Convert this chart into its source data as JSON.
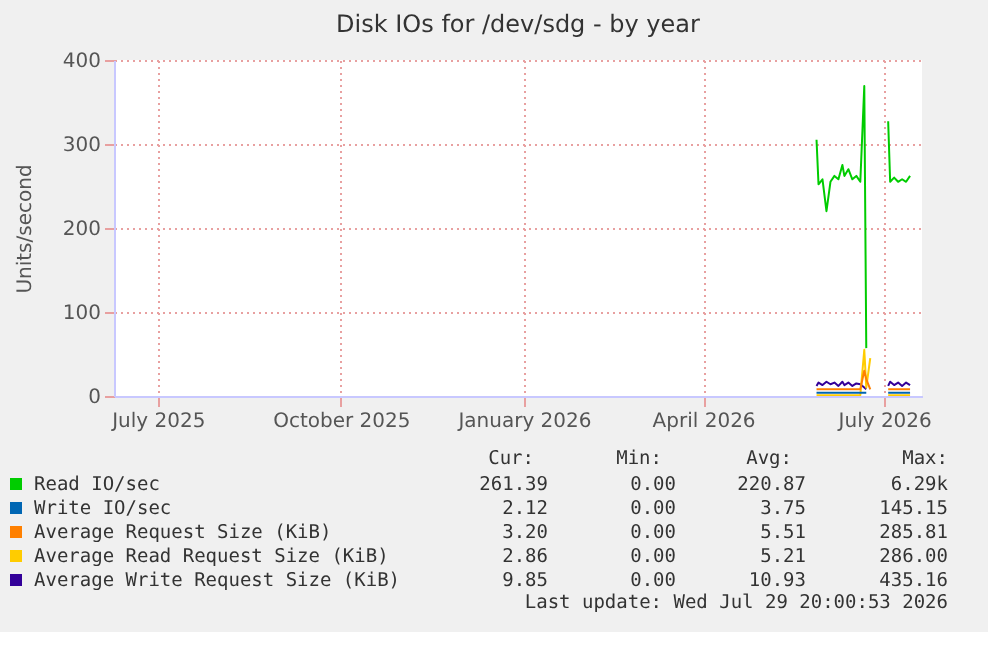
{
  "chart_data": {
    "type": "line",
    "title": "Disk IOs for /dev/sdg - by year",
    "ylabel": "Units/second",
    "x": [
      "2026-05-28",
      "2026-05-29",
      "2026-05-31",
      "2026-06-02",
      "2026-06-04",
      "2026-06-06",
      "2026-06-08",
      "2026-06-10",
      "2026-06-11",
      "2026-06-13",
      "2026-06-15",
      "2026-06-17",
      "2026-06-19",
      "2026-06-21",
      "2026-06-22",
      "2026-06-24",
      "2026-06-28",
      "2026-07-03",
      "2026-07-04",
      "2026-07-06",
      "2026-07-08",
      "2026-07-10",
      "2026-07-12",
      "2026-07-14"
    ],
    "series": [
      {
        "name": "Read IO/sec",
        "color": "#00cc00",
        "values": [
          305,
          252,
          258,
          220,
          255,
          262,
          258,
          275,
          262,
          270,
          258,
          262,
          255,
          369,
          57,
          null,
          null,
          327,
          255,
          260,
          255,
          258,
          255,
          262
        ]
      },
      {
        "name": "Write IO/sec",
        "color": "#0066b3",
        "values": [
          4,
          4,
          4,
          4,
          4,
          4,
          4,
          4,
          4,
          4,
          4,
          4,
          4,
          4,
          4,
          null,
          null,
          4,
          4,
          4,
          4,
          4,
          4,
          4
        ]
      },
      {
        "name": "Average Request Size (KiB)",
        "color": "#ff8000",
        "values": [
          8,
          8,
          8,
          8,
          8,
          8,
          8,
          8,
          8,
          8,
          8,
          8,
          8,
          30,
          20,
          8,
          null,
          8,
          8,
          8,
          8,
          8,
          8,
          8
        ]
      },
      {
        "name": "Average Read Request Size (KiB)",
        "color": "#ffcc00",
        "values": [
          1,
          1,
          1,
          1,
          1,
          1,
          1,
          1,
          1,
          1,
          1,
          1,
          1,
          55,
          10,
          45,
          null,
          1,
          1,
          1,
          1,
          1,
          1,
          1
        ]
      },
      {
        "name": "Average Write Request Size (KiB)",
        "color": "#330099",
        "values": [
          12,
          16,
          13,
          17,
          14,
          16,
          12,
          17,
          13,
          16,
          12,
          15,
          14,
          10,
          8,
          null,
          null,
          12,
          17,
          13,
          16,
          12,
          16,
          13
        ]
      }
    ],
    "xlim": [
      "2025-06-09",
      "2026-07-20"
    ],
    "xticks": [
      {
        "value": "2025-07-01",
        "label": "July 2025"
      },
      {
        "value": "2025-10-01",
        "label": "October 2025"
      },
      {
        "value": "2026-01-01",
        "label": "January 2026"
      },
      {
        "value": "2026-04-01",
        "label": "April 2026"
      },
      {
        "value": "2026-07-01",
        "label": "July 2026"
      }
    ],
    "ylim": [
      0,
      400
    ],
    "yticks": [
      0,
      100,
      200,
      300,
      400
    ],
    "grid": true,
    "legend": "bottom",
    "annotations": [
      "Cur:",
      "Min:",
      "Avg:",
      "Max:",
      "261.39",
      "0.00",
      "220.87",
      "6.29k",
      "2.12",
      "0.00",
      "3.75",
      "145.15",
      "3.20",
      "0.00",
      "5.51",
      "285.81",
      "2.86",
      "0.00",
      "5.21",
      "286.00",
      "9.85",
      "0.00",
      "10.93",
      "435.16",
      "Last update: Wed Jul 29 20:00:53 2026"
    ]
  }
}
